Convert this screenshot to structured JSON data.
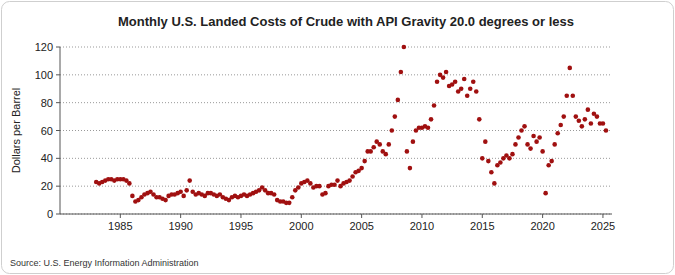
{
  "chart_data": {
    "type": "scatter",
    "title": "Monthly U.S. Landed Costs of Crude with API Gravity 20.0 degrees or less",
    "y_label": "Dollars per Barrel",
    "source": "Source: U.S. Energy Information Administration",
    "x": [
      1983,
      1983.25,
      1983.5,
      1983.75,
      1984,
      1984.25,
      1984.5,
      1984.75,
      1985,
      1985.25,
      1985.5,
      1985.75,
      1986,
      1986.25,
      1986.5,
      1986.75,
      1987,
      1987.25,
      1987.5,
      1987.75,
      1988,
      1988.25,
      1988.5,
      1988.75,
      1989,
      1989.25,
      1989.5,
      1989.75,
      1990,
      1990.25,
      1990.5,
      1990.75,
      1991,
      1991.25,
      1991.5,
      1991.75,
      1992,
      1992.25,
      1992.5,
      1992.75,
      1993,
      1993.25,
      1993.5,
      1993.75,
      1994,
      1994.25,
      1994.5,
      1994.75,
      1995,
      1995.25,
      1995.5,
      1995.75,
      1996,
      1996.25,
      1996.5,
      1996.75,
      1997,
      1997.25,
      1997.5,
      1997.75,
      1998,
      1998.25,
      1998.5,
      1998.75,
      1999,
      1999.25,
      1999.5,
      1999.75,
      2000,
      2000.25,
      2000.5,
      2000.75,
      2001,
      2001.25,
      2001.5,
      2001.75,
      2002,
      2002.25,
      2002.5,
      2002.75,
      2003,
      2003.25,
      2003.5,
      2003.75,
      2004,
      2004.25,
      2004.5,
      2004.75,
      2005,
      2005.25,
      2005.5,
      2005.75,
      2006,
      2006.25,
      2006.5,
      2006.75,
      2007,
      2007.25,
      2007.5,
      2007.75,
      2008,
      2008.25,
      2008.5,
      2008.75,
      2009,
      2009.25,
      2009.5,
      2009.75,
      2010,
      2010.25,
      2010.5,
      2010.75,
      2011,
      2011.25,
      2011.5,
      2011.75,
      2012,
      2012.25,
      2012.5,
      2012.75,
      2013,
      2013.25,
      2013.5,
      2013.75,
      2014,
      2014.25,
      2014.5,
      2014.75,
      2015,
      2015.25,
      2015.5,
      2015.75,
      2016,
      2016.25,
      2016.5,
      2016.75,
      2017,
      2017.25,
      2017.5,
      2017.75,
      2018,
      2018.25,
      2018.5,
      2018.75,
      2019,
      2019.25,
      2019.5,
      2019.75,
      2020,
      2020.25,
      2020.5,
      2020.75,
      2021,
      2021.25,
      2021.5,
      2021.75,
      2022,
      2022.25,
      2022.5,
      2022.75,
      2023,
      2023.25,
      2023.5,
      2023.75,
      2024,
      2024.25,
      2024.5,
      2024.75,
      2025,
      2025.25
    ],
    "series": [
      {
        "name": "Landed Cost",
        "color": "#a01010",
        "marker": "circle",
        "values": [
          23,
          22,
          23,
          24,
          25,
          25,
          24,
          25,
          25,
          25,
          24,
          22,
          13,
          9,
          10,
          12,
          14,
          15,
          16,
          14,
          12,
          12,
          11,
          10,
          13,
          14,
          14,
          15,
          16,
          13,
          17,
          24,
          16,
          14,
          15,
          14,
          13,
          15,
          15,
          14,
          13,
          14,
          12,
          11,
          10,
          12,
          13,
          12,
          13,
          14,
          13,
          14,
          15,
          16,
          17,
          19,
          17,
          15,
          15,
          14,
          10,
          9,
          9,
          8,
          8,
          12,
          17,
          19,
          22,
          23,
          24,
          22,
          19,
          20,
          20,
          14,
          15,
          20,
          21,
          21,
          24,
          20,
          22,
          23,
          24,
          27,
          30,
          31,
          33,
          38,
          45,
          45,
          48,
          52,
          50,
          45,
          43,
          50,
          60,
          70,
          82,
          102,
          120,
          45,
          33,
          52,
          60,
          62,
          62,
          63,
          62,
          68,
          78,
          95,
          100,
          98,
          102,
          92,
          93,
          95,
          88,
          90,
          97,
          85,
          90,
          95,
          88,
          68,
          40,
          52,
          38,
          30,
          22,
          35,
          37,
          40,
          42,
          40,
          43,
          50,
          55,
          60,
          63,
          50,
          47,
          56,
          52,
          55,
          45,
          15,
          35,
          38,
          50,
          58,
          64,
          70,
          85,
          105,
          85,
          70,
          67,
          63,
          68,
          75,
          65,
          72,
          70,
          65,
          65,
          60
        ]
      }
    ],
    "xlim": [
      1980,
      2025.75
    ],
    "xticks": [
      1985,
      1990,
      1995,
      2000,
      2005,
      2010,
      2015,
      2020,
      2025
    ],
    "ylim": [
      0,
      120
    ],
    "yticks": [
      0,
      20,
      40,
      60,
      80,
      100,
      120
    ],
    "grid": true
  }
}
